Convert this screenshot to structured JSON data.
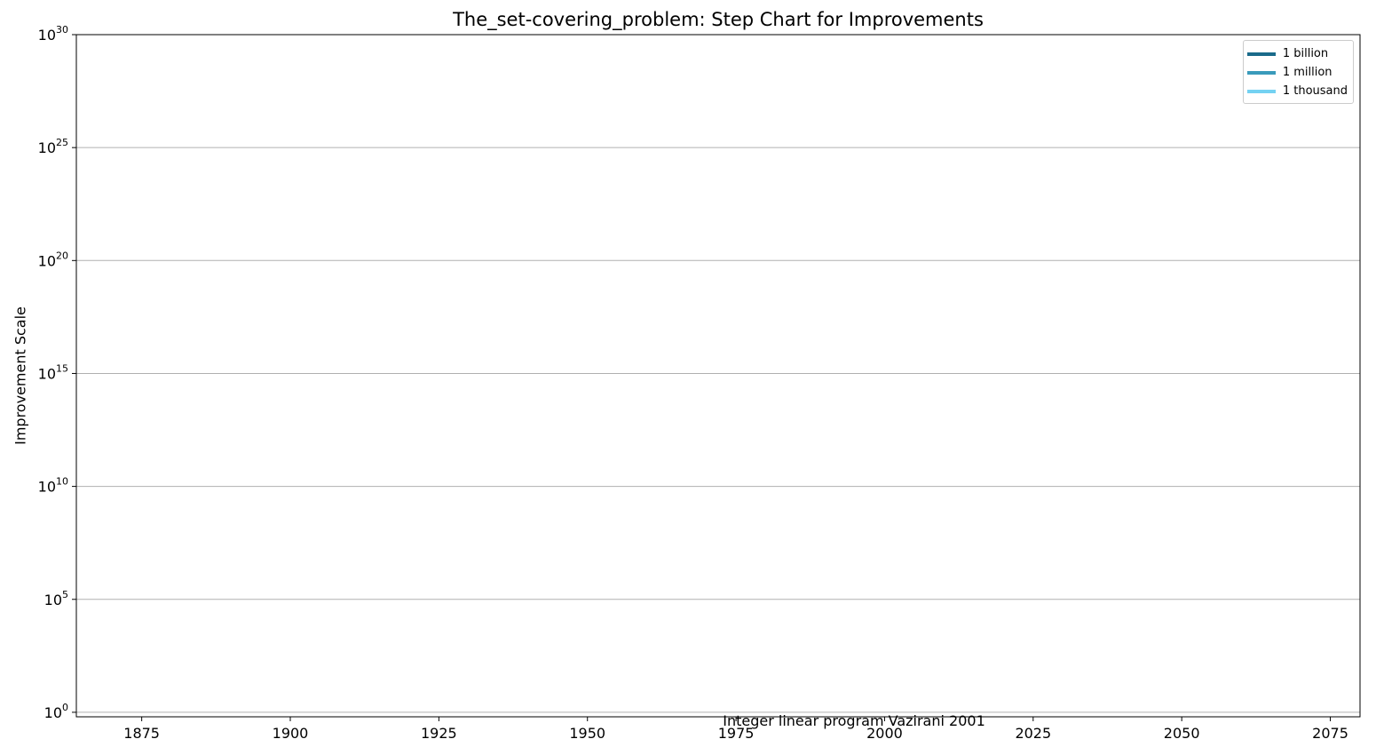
{
  "chart_data": {
    "type": "line",
    "title": "The_set-covering_problem: Step Chart for Improvements",
    "xlabel": "",
    "ylabel": "Improvement Scale",
    "xlim": [
      1864,
      2080
    ],
    "ylim_log10": [
      -0.2,
      30
    ],
    "yscale": "log",
    "x_ticks": [
      1875,
      1900,
      1925,
      1950,
      1975,
      2000,
      2025,
      2050,
      2075
    ],
    "y_ticks": [
      {
        "base": "10",
        "exp": "0",
        "value_log10": 0
      },
      {
        "base": "10",
        "exp": "5",
        "value_log10": 5
      },
      {
        "base": "10",
        "exp": "10",
        "value_log10": 10
      },
      {
        "base": "10",
        "exp": "15",
        "value_log10": 15
      },
      {
        "base": "10",
        "exp": "20",
        "value_log10": 20
      },
      {
        "base": "10",
        "exp": "25",
        "value_log10": 25
      },
      {
        "base": "10",
        "exp": "30",
        "value_log10": 30
      }
    ],
    "grid": "horizontal",
    "legend_position": "top-right",
    "series": [
      {
        "name": "1 billion",
        "color": "#1a6b8a",
        "values": []
      },
      {
        "name": "1 million",
        "color": "#3a9bbb",
        "values": []
      },
      {
        "name": "1 thousand",
        "color": "#74d2f2",
        "values": []
      }
    ],
    "annotations": [
      {
        "text": "Integer linear program Vazirani 2001",
        "x": 1990,
        "y_log10": 0
      }
    ]
  }
}
